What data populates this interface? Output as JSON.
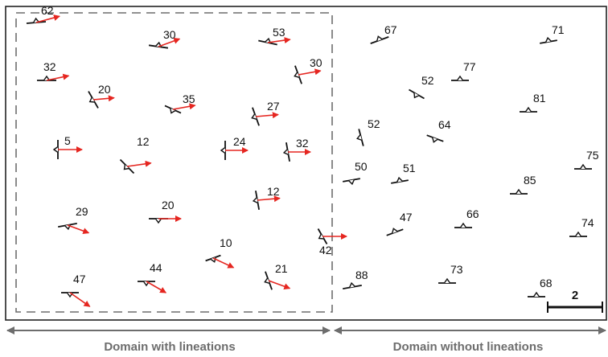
{
  "captions": {
    "with_lineations": "Domain with lineations",
    "without_lineations": "Domain without lineations"
  },
  "scale_bar": {
    "label": "2"
  },
  "colors": {
    "strike": "#111111",
    "lineation": "#e52620",
    "frame": "#222222",
    "dash": "#6d6d6d",
    "caption": "#6d6d6d"
  },
  "symbols": [
    {
      "dip": "62",
      "lineation": true
    },
    {
      "dip": "30",
      "lineation": true
    },
    {
      "dip": "53",
      "lineation": true
    },
    {
      "dip": "32",
      "lineation": true
    },
    {
      "dip": "30",
      "lineation": true
    },
    {
      "dip": "20",
      "lineation": true
    },
    {
      "dip": "35",
      "lineation": true
    },
    {
      "dip": "27",
      "lineation": true
    },
    {
      "dip": "5",
      "lineation": true
    },
    {
      "dip": "12",
      "lineation": true
    },
    {
      "dip": "24",
      "lineation": true
    },
    {
      "dip": "32",
      "lineation": true
    },
    {
      "dip": "12",
      "lineation": true
    },
    {
      "dip": "29",
      "lineation": true
    },
    {
      "dip": "20",
      "lineation": true
    },
    {
      "dip": "10",
      "lineation": true
    },
    {
      "dip": "42",
      "lineation": true
    },
    {
      "dip": "44",
      "lineation": true
    },
    {
      "dip": "21",
      "lineation": true
    },
    {
      "dip": "47",
      "lineation": true
    },
    {
      "dip": "67",
      "lineation": false
    },
    {
      "dip": "71",
      "lineation": false
    },
    {
      "dip": "77",
      "lineation": false
    },
    {
      "dip": "52",
      "lineation": false
    },
    {
      "dip": "81",
      "lineation": false
    },
    {
      "dip": "52",
      "lineation": false
    },
    {
      "dip": "64",
      "lineation": false
    },
    {
      "dip": "75",
      "lineation": false
    },
    {
      "dip": "50",
      "lineation": false
    },
    {
      "dip": "51",
      "lineation": false
    },
    {
      "dip": "85",
      "lineation": false
    },
    {
      "dip": "47",
      "lineation": false
    },
    {
      "dip": "66",
      "lineation": false
    },
    {
      "dip": "74",
      "lineation": false
    },
    {
      "dip": "88",
      "lineation": false
    },
    {
      "dip": "73",
      "lineation": false
    },
    {
      "dip": "68",
      "lineation": false
    }
  ]
}
